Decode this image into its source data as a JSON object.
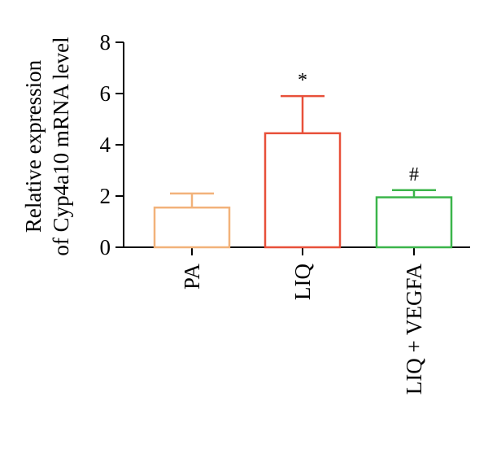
{
  "chart_data": {
    "type": "bar",
    "ylabel_line1": "Relative expression",
    "ylabel_line2": "of Cyp4a10 mRNA level",
    "xlabel": "",
    "ylim": [
      0,
      8
    ],
    "yticks": [
      "0",
      "2",
      "4",
      "6",
      "8"
    ],
    "categories": [
      "PA",
      "LIQ",
      "LIQ + VEGFA"
    ],
    "values": [
      1.55,
      4.45,
      1.95
    ],
    "errors": [
      0.55,
      1.45,
      0.28
    ],
    "annotations": [
      "",
      "*",
      "#"
    ],
    "colors": [
      "#f2b27a",
      "#e8503a",
      "#3bb54a"
    ],
    "bar_fill": "#ffffff",
    "grid": false
  }
}
